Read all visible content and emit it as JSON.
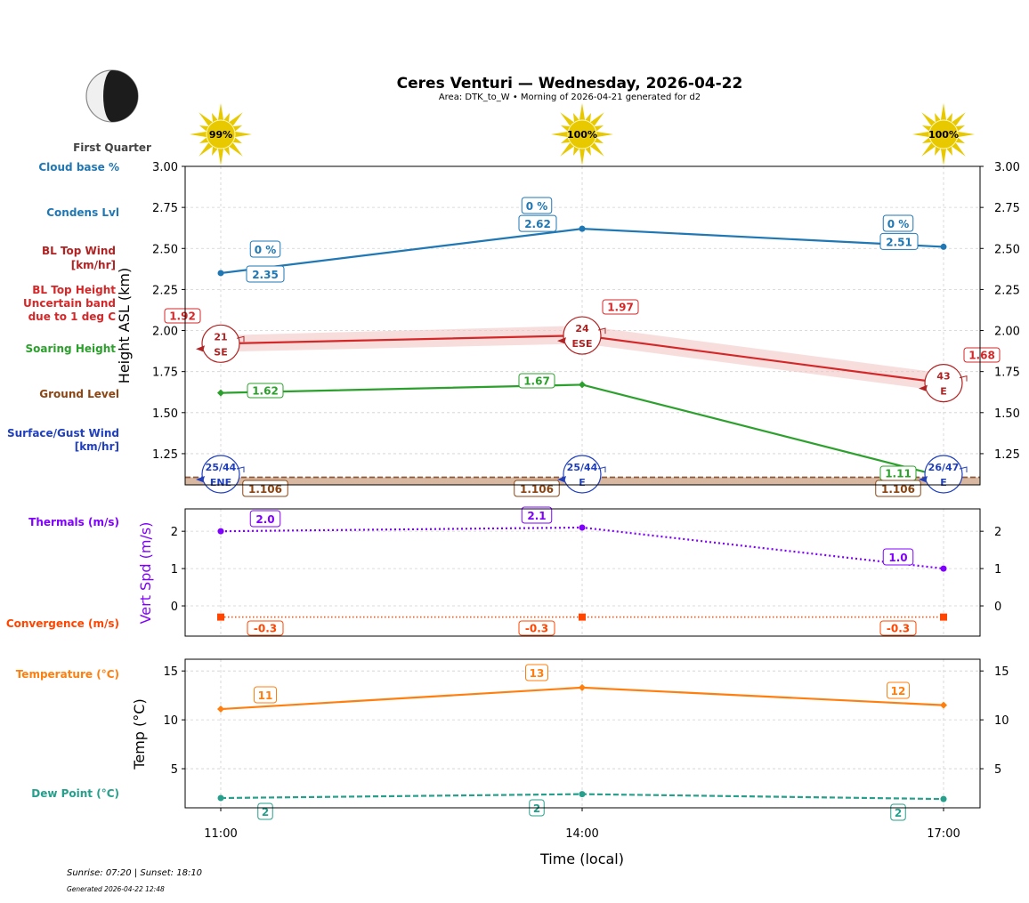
{
  "title": "Ceres Venturi — Wednesday, 2026-04-22",
  "subtitle": "Area: DTK_to_W • Morning of 2026-04-21 generated for d2",
  "moon": {
    "phase": "First Quarter",
    "icon": "moon-first-quarter-icon"
  },
  "sun": {
    "icon": "sun-icon",
    "values": [
      "99%",
      "100%",
      "100%"
    ]
  },
  "footer": {
    "sun_times": "Sunrise: 07:20 | Sunset: 18:10",
    "generated": "Generated 2026-04-22 12:48"
  },
  "row_labels": {
    "cloud_base": "Cloud base %",
    "condens": "Condens Lvl",
    "bl_wind_1": "BL Top Wind",
    "bl_wind_2": "[km/hr]",
    "bl_height_1": "BL Top Height",
    "bl_height_2": "Uncertain band",
    "bl_height_3": "due to 1 deg C",
    "soaring": "Soaring Height",
    "ground": "Ground Level",
    "surface_1": "Surface/Gust Wind",
    "surface_2": "[km/hr]",
    "thermals": "Thermals (m/s)",
    "convergence": "Convergence (m/s)",
    "temperature": "Temperature (°C)",
    "dewpoint": "Dew Point (°C)"
  },
  "colors": {
    "cloud": "#1f77b4",
    "bl": "#d62728",
    "bl_wind": "#b22222",
    "soaring": "#2ca02c",
    "ground": "#8b4513",
    "surface": "#1f3fbf",
    "thermal": "#8000ff",
    "convergence": "#ff4500",
    "temp": "#ff7f0e",
    "dew": "#26a08c"
  },
  "chart_data": [
    {
      "type": "line",
      "ylabel": "Height ASL (km)",
      "x": [
        "11:00",
        "14:00",
        "17:00"
      ],
      "ylim": [
        1.06,
        3.0
      ],
      "yticks": [
        "1.25",
        "1.50",
        "1.75",
        "2.00",
        "2.25",
        "2.50",
        "2.75",
        "3.00"
      ],
      "grid": true,
      "series": {
        "cloud_base": {
          "values": [
            2.35,
            2.62,
            2.51
          ],
          "labels": [
            "2.35",
            "2.62",
            "2.51"
          ],
          "cloud_pct": [
            "0 %",
            "0 %",
            "0 %"
          ]
        },
        "bl_top": {
          "values": [
            1.92,
            1.97,
            1.68
          ],
          "band_low": [
            1.87,
            1.92,
            1.63
          ],
          "band_high": [
            1.97,
            2.03,
            1.74
          ],
          "labels": [
            "1.92",
            "1.97",
            "1.68"
          ],
          "wind_speed": [
            "21",
            "24",
            "43"
          ],
          "wind_dir": [
            "SE",
            "ESE",
            "E"
          ]
        },
        "soaring": {
          "values": [
            1.62,
            1.67,
            1.11
          ],
          "labels": [
            "1.62",
            "1.67",
            "1.11"
          ]
        },
        "ground": {
          "values": [
            1.106,
            1.106,
            1.106
          ],
          "labels": [
            "1.106",
            "1.106",
            "1.106"
          ]
        },
        "surface_wind": {
          "speed_gust": [
            "25/44",
            "25/44",
            "26/47"
          ],
          "dir": [
            "ENE",
            "E",
            "E"
          ]
        }
      }
    },
    {
      "type": "line",
      "ylabel": "Vert Spd (m/s)",
      "x": [
        "11:00",
        "14:00",
        "17:00"
      ],
      "ylim": [
        -0.81,
        2.6
      ],
      "yticks": [
        "0",
        "1",
        "2"
      ],
      "grid": true,
      "series": {
        "thermals": {
          "values": [
            2.0,
            2.1,
            1.0
          ],
          "labels": [
            "2.0",
            "2.1",
            "1.0"
          ]
        },
        "convergence": {
          "values": [
            -0.3,
            -0.3,
            -0.3
          ],
          "labels": [
            "-0.3",
            "-0.3",
            "-0.3"
          ]
        }
      }
    },
    {
      "type": "line",
      "ylabel": "Temp (°C)",
      "xlabel": "Time (local)",
      "x": [
        "11:00",
        "14:00",
        "17:00"
      ],
      "ylim": [
        1.0,
        16.2
      ],
      "yticks": [
        "5",
        "10",
        "15"
      ],
      "grid": true,
      "series": {
        "temperature": {
          "values": [
            11.1,
            13.3,
            11.5
          ],
          "labels": [
            "11",
            "13",
            "12"
          ]
        },
        "dewpoint": {
          "values": [
            2.0,
            2.4,
            1.9
          ],
          "labels": [
            "2",
            "2",
            "2"
          ]
        }
      }
    }
  ]
}
